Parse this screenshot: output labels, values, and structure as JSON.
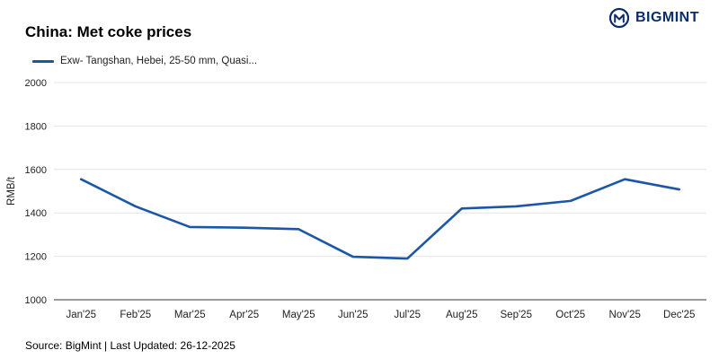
{
  "header": {
    "title": "China: Met coke prices",
    "brand": "BIGMINT"
  },
  "legend": {
    "label": "Exw- Tangshan, Hebei, 25-50 mm, Quasi..."
  },
  "footer": {
    "source": "Source: BigMint | Last Updated: 26-12-2025"
  },
  "colors": {
    "line": "#1b57a6",
    "brand": "#0b2d6b",
    "grid": "#e4e4e4",
    "axis": "#7a7a7a",
    "tick_text": "#222222"
  },
  "chart_data": {
    "type": "line",
    "title": "China: Met coke prices",
    "ylabel": "RMB/t",
    "xlabel": "",
    "ylim": [
      1000,
      2000
    ],
    "yticks": [
      1000,
      1200,
      1400,
      1600,
      1800,
      2000
    ],
    "grid": true,
    "legend_position": "top-left",
    "categories": [
      "Jan'25",
      "Feb'25",
      "Mar'25",
      "Apr'25",
      "May'25",
      "Jun'25",
      "Jul'25",
      "Aug'25",
      "Sep'25",
      "Oct'25",
      "Nov'25",
      "Dec'25"
    ],
    "series": [
      {
        "name": "Exw- Tangshan, Hebei, 25-50 mm, Quasi...",
        "values": [
          1555,
          1430,
          1335,
          1332,
          1325,
          1198,
          1190,
          1420,
          1430,
          1455,
          1555,
          1508
        ]
      }
    ]
  }
}
